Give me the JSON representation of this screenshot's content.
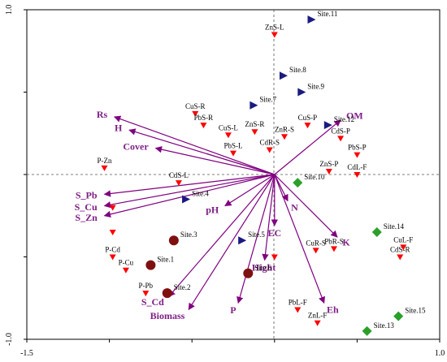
{
  "chart_data": {
    "type": "scatter",
    "subtype": "rda-biplot",
    "title": "",
    "xlabel": "",
    "ylabel": "",
    "xlim": [
      -1.5,
      1.0
    ],
    "ylim": [
      -1.0,
      1.0
    ],
    "xticks": [
      "-1.5",
      "1.0"
    ],
    "yticks": [
      "1.0",
      "-1.0"
    ],
    "grid": false,
    "reference_lines": "dashed lines at x = 0 and y = 0",
    "colors": {
      "species": "#ff0000",
      "site_triangle": "#1a1a80",
      "site_circle": "#7f1010",
      "site_diamond": "#2aa02a",
      "arrow": "#800080"
    },
    "species": [
      {
        "label": "ZnS-L",
        "x": 0.0,
        "y": 0.85
      },
      {
        "label": "CuS-R",
        "x": -0.48,
        "y": 0.37
      },
      {
        "label": "PbS-R",
        "x": -0.43,
        "y": 0.3
      },
      {
        "label": "CuS-L",
        "x": -0.28,
        "y": 0.24
      },
      {
        "label": "ZnS-R",
        "x": -0.12,
        "y": 0.26
      },
      {
        "label": "PbS-L",
        "x": -0.25,
        "y": 0.13
      },
      {
        "label": "CdR-S",
        "x": -0.03,
        "y": 0.15
      },
      {
        "label": "ZnR-S",
        "x": 0.06,
        "y": 0.23
      },
      {
        "label": "CuS-P",
        "x": 0.2,
        "y": 0.3
      },
      {
        "label": "CdS-P",
        "x": 0.4,
        "y": 0.22
      },
      {
        "label": "PbS-P",
        "x": 0.5,
        "y": 0.12
      },
      {
        "label": "ZnS-P",
        "x": 0.33,
        "y": 0.02
      },
      {
        "label": "CdL-F",
        "x": 0.5,
        "y": 0.0
      },
      {
        "label": "P-Zn",
        "x": -1.03,
        "y": 0.04
      },
      {
        "label": "CdS-L",
        "x": -0.58,
        "y": -0.05
      },
      {
        "label": "",
        "x": -0.98,
        "y": -0.2
      },
      {
        "label": "",
        "x": -0.98,
        "y": -0.35
      },
      {
        "label": "P-Cd",
        "x": -0.98,
        "y": -0.5
      },
      {
        "label": "P-Cu",
        "x": -0.9,
        "y": -0.58
      },
      {
        "label": "P-Pb",
        "x": -0.78,
        "y": -0.72
      },
      {
        "label": "",
        "x": 0.0,
        "y": -0.5
      },
      {
        "label": "CuR-S",
        "x": 0.25,
        "y": -0.46
      },
      {
        "label": "PbR-S",
        "x": 0.36,
        "y": -0.45
      },
      {
        "label": "PbL-F",
        "x": 0.14,
        "y": -0.82
      },
      {
        "label": "ZnL-F",
        "x": 0.26,
        "y": -0.9
      },
      {
        "label": "CuL-F",
        "x": 0.78,
        "y": -0.44
      },
      {
        "label": "CdS-R",
        "x": 0.76,
        "y": -0.5
      }
    ],
    "sites": [
      {
        "label": "Site.11",
        "x": 0.22,
        "y": 0.94,
        "shape": "triangle"
      },
      {
        "label": "Site.8",
        "x": 0.05,
        "y": 0.6,
        "shape": "triangle"
      },
      {
        "label": "Site.9",
        "x": 0.16,
        "y": 0.5,
        "shape": "triangle"
      },
      {
        "label": "Site.7",
        "x": -0.13,
        "y": 0.42,
        "shape": "triangle"
      },
      {
        "label": "Site.12",
        "x": 0.32,
        "y": 0.3,
        "shape": "triangle"
      },
      {
        "label": "Site.4",
        "x": -0.54,
        "y": -0.15,
        "shape": "triangle"
      },
      {
        "label": "Site.5",
        "x": -0.2,
        "y": -0.4,
        "shape": "triangle"
      },
      {
        "label": "Site.3",
        "x": -0.61,
        "y": -0.4,
        "shape": "circle"
      },
      {
        "label": "Site.1",
        "x": -0.75,
        "y": -0.55,
        "shape": "circle"
      },
      {
        "label": "Site.2",
        "x": -0.65,
        "y": -0.72,
        "shape": "circle"
      },
      {
        "label": "Site.6",
        "x": -0.16,
        "y": -0.6,
        "shape": "circle"
      },
      {
        "label": "Site.10",
        "x": 0.14,
        "y": -0.05,
        "shape": "diamond"
      },
      {
        "label": "Site.14",
        "x": 0.62,
        "y": -0.35,
        "shape": "diamond"
      },
      {
        "label": "Site.13",
        "x": 0.56,
        "y": -0.95,
        "shape": "diamond"
      },
      {
        "label": "Site.15",
        "x": 0.75,
        "y": -0.86,
        "shape": "diamond"
      }
    ],
    "environment": [
      {
        "label": "OM",
        "x": 0.4,
        "y": 0.33
      },
      {
        "label": "N",
        "x": 0.08,
        "y": -0.16
      },
      {
        "label": "K",
        "x": 0.38,
        "y": -0.38
      },
      {
        "label": "Eh",
        "x": 0.3,
        "y": -0.78
      },
      {
        "label": "EC",
        "x": 0.0,
        "y": -0.31
      },
      {
        "label": "Hight",
        "x": -0.06,
        "y": -0.52
      },
      {
        "label": "P",
        "x": -0.22,
        "y": -0.78
      },
      {
        "label": "Biomass",
        "x": -0.52,
        "y": -0.82
      },
      {
        "label": "S_Cd",
        "x": -0.64,
        "y": -0.74
      },
      {
        "label": "pH",
        "x": -0.3,
        "y": -0.19
      },
      {
        "label": "Rs",
        "x": -0.97,
        "y": 0.35
      },
      {
        "label": "H",
        "x": -0.88,
        "y": 0.27
      },
      {
        "label": "Cover",
        "x": -0.72,
        "y": 0.16
      },
      {
        "label": "S_Pb",
        "x": -1.03,
        "y": -0.12
      },
      {
        "label": "S_Cu",
        "x": -1.03,
        "y": -0.19
      },
      {
        "label": "S_Zn",
        "x": -1.03,
        "y": -0.25
      }
    ]
  }
}
